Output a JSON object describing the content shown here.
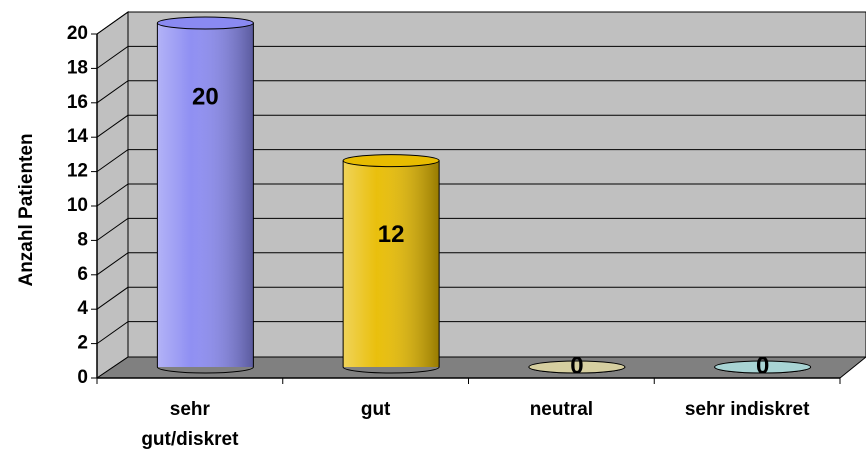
{
  "chart_data": {
    "type": "bar",
    "y_label": "Anzahl Patienten",
    "categories": [
      [
        "sehr",
        "gut/diskret"
      ],
      [
        "gut"
      ],
      [
        "neutral"
      ],
      [
        "sehr indiskret"
      ]
    ],
    "values": [
      20,
      12,
      0,
      0
    ],
    "value_labels_shown": true,
    "colors": [
      "#8a8af2",
      "#e8bc00",
      "#d6cfa0",
      "#a8d4d4"
    ],
    "ylim": [
      0,
      20
    ],
    "yticks": [
      0,
      2,
      4,
      6,
      8,
      10,
      12,
      14,
      16,
      18,
      20
    ],
    "grid": true
  }
}
